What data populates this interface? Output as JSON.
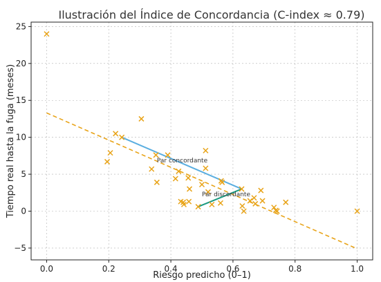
{
  "chart_data": {
    "type": "scatter",
    "title": "Ilustración del Índice de Concordancia (C-index ≈ 0.79)",
    "xlabel": "Riesgo predicho (0–1)",
    "ylabel": "Tiempo real hasta la fuga (meses)",
    "xlim": [
      -0.05,
      1.05
    ],
    "ylim": [
      -6.6,
      25.6
    ],
    "xticks": [
      0.0,
      0.2,
      0.4,
      0.6,
      0.8,
      1.0
    ],
    "xtick_labels": [
      "0.0",
      "0.2",
      "0.4",
      "0.6",
      "0.8",
      "1.0"
    ],
    "yticks": [
      -5,
      0,
      5,
      10,
      15,
      20,
      25
    ],
    "ytick_labels": [
      "−5",
      "0",
      "5",
      "10",
      "15",
      "20",
      "25"
    ],
    "grid": true,
    "colors": {
      "points": "#e8a317",
      "trend": "#e8a317",
      "concordant": "#5aaee0",
      "discordant": "#1a9a80"
    },
    "points": [
      [
        0.0,
        24.0
      ],
      [
        0.195,
        6.7
      ],
      [
        0.205,
        7.9
      ],
      [
        0.222,
        10.5
      ],
      [
        0.242,
        10.0
      ],
      [
        0.305,
        12.5
      ],
      [
        0.338,
        5.7
      ],
      [
        0.352,
        7.6
      ],
      [
        0.355,
        3.9
      ],
      [
        0.39,
        7.6
      ],
      [
        0.415,
        4.4
      ],
      [
        0.425,
        5.4
      ],
      [
        0.432,
        1.3
      ],
      [
        0.44,
        1.2
      ],
      [
        0.442,
        0.9
      ],
      [
        0.456,
        4.5
      ],
      [
        0.458,
        1.3
      ],
      [
        0.46,
        3.0
      ],
      [
        0.488,
        0.6
      ],
      [
        0.5,
        3.6
      ],
      [
        0.512,
        8.2
      ],
      [
        0.512,
        5.8
      ],
      [
        0.52,
        2.6
      ],
      [
        0.532,
        0.9
      ],
      [
        0.56,
        1.1
      ],
      [
        0.562,
        4.1
      ],
      [
        0.565,
        3.9
      ],
      [
        0.628,
        3.0
      ],
      [
        0.63,
        0.7
      ],
      [
        0.635,
        0.0
      ],
      [
        0.655,
        1.4
      ],
      [
        0.668,
        1.8
      ],
      [
        0.672,
        1.0
      ],
      [
        0.69,
        2.8
      ],
      [
        0.695,
        1.4
      ],
      [
        0.732,
        0.5
      ],
      [
        0.738,
        0.1
      ],
      [
        0.742,
        0.0
      ],
      [
        0.77,
        1.2
      ],
      [
        1.0,
        0.0
      ]
    ],
    "trend_line": [
      [
        0.0,
        13.3
      ],
      [
        1.0,
        -5.1
      ]
    ],
    "concordant_pair": [
      [
        0.242,
        10.0
      ],
      [
        0.628,
        3.0
      ]
    ],
    "discordant_pair": [
      [
        0.488,
        0.6
      ],
      [
        0.628,
        3.0
      ]
    ],
    "annotations": [
      {
        "text": "Par concordante",
        "x": 0.355,
        "y": 6.6
      },
      {
        "text": "Par discordante",
        "x": 0.5,
        "y": 2.0
      }
    ]
  }
}
